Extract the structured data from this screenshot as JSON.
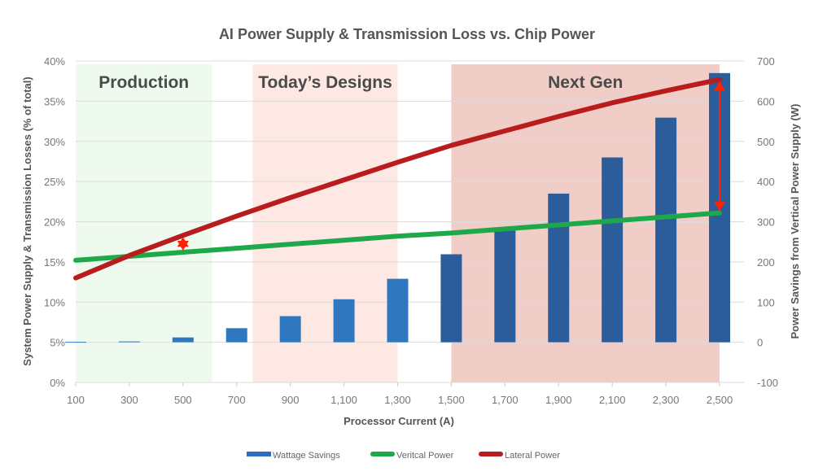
{
  "chart_data": {
    "type": "bar+line",
    "title": "AI Power Supply & Transmission Loss vs. Chip Power",
    "xlabel": "Processor Current (A)",
    "ylabel": "System Power Supply & Transmission Losses (% of total)",
    "y2label": "Power Savings from Vertical Power Supply (W)",
    "categories": [
      "100",
      "300",
      "500",
      "700",
      "900",
      "1,100",
      "1,300",
      "1,500",
      "1,700",
      "1,900",
      "2,100",
      "2,300",
      "2,500"
    ],
    "x": [
      100,
      300,
      500,
      700,
      900,
      1100,
      1300,
      1500,
      1700,
      1900,
      2100,
      2300,
      2500
    ],
    "ylim": [
      0,
      40
    ],
    "yticks": [
      "0%",
      "5%",
      "10%",
      "15%",
      "20%",
      "25%",
      "30%",
      "35%",
      "40%"
    ],
    "y2lim": [
      -100,
      700
    ],
    "y2ticks": [
      "-100",
      "0",
      "100",
      "200",
      "300",
      "400",
      "500",
      "600",
      "700"
    ],
    "grid": true,
    "legend_position": "bottom",
    "series": [
      {
        "name": "Wattage Savings",
        "type": "bar",
        "axis": "right",
        "color": "#2a65a8",
        "values": [
          1,
          2,
          12,
          35,
          65,
          107,
          158,
          219,
          285,
          370,
          460,
          559,
          670
        ]
      },
      {
        "name": "Veritcal Power",
        "type": "line",
        "axis": "left",
        "color": "#1fa84a",
        "values": [
          15.2,
          15.7,
          16.2,
          16.7,
          17.2,
          17.7,
          18.2,
          18.6,
          19.1,
          19.6,
          20.1,
          20.6,
          21.1
        ]
      },
      {
        "name": "Lateral Power",
        "type": "line",
        "axis": "left",
        "color": "#b81c1c",
        "values": [
          13.0,
          15.8,
          18.3,
          20.7,
          23.0,
          25.2,
          27.4,
          29.5,
          31.3,
          33.1,
          34.8,
          36.3,
          37.7
        ]
      }
    ],
    "regions": [
      {
        "label": "Production",
        "from": 100,
        "to": 608,
        "color": "#eefaee"
      },
      {
        "label": "Today’s Designs",
        "from": 760,
        "to": 1300,
        "color": "#fde8e4"
      },
      {
        "label": "Next Gen",
        "from": 1500,
        "to": 2500,
        "color": "#f0cdc6"
      }
    ],
    "annotations": [
      {
        "type": "double-arrow",
        "x": 500,
        "color": "#ff2200"
      },
      {
        "type": "double-arrow",
        "x": 2500,
        "color": "#ff2200"
      }
    ]
  }
}
